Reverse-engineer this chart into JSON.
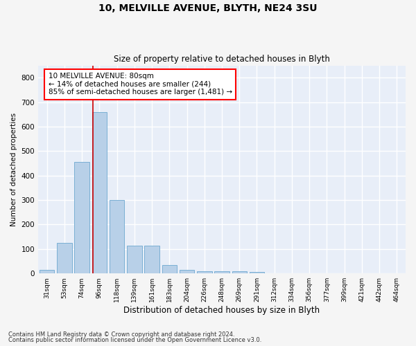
{
  "title1": "10, MELVILLE AVENUE, BLYTH, NE24 3SU",
  "title2": "Size of property relative to detached houses in Blyth",
  "xlabel": "Distribution of detached houses by size in Blyth",
  "ylabel": "Number of detached properties",
  "bin_labels": [
    "31sqm",
    "53sqm",
    "74sqm",
    "96sqm",
    "118sqm",
    "139sqm",
    "161sqm",
    "183sqm",
    "204sqm",
    "226sqm",
    "248sqm",
    "269sqm",
    "291sqm",
    "312sqm",
    "334sqm",
    "356sqm",
    "377sqm",
    "399sqm",
    "421sqm",
    "442sqm",
    "464sqm"
  ],
  "bar_heights": [
    15,
    125,
    455,
    660,
    300,
    115,
    115,
    35,
    15,
    10,
    10,
    10,
    5,
    0,
    0,
    0,
    0,
    0,
    0,
    0,
    0
  ],
  "bar_color": "#b8d0e8",
  "bar_edge_color": "#7aafd4",
  "annotation_box_text": "10 MELVILLE AVENUE: 80sqm\n← 14% of detached houses are smaller (244)\n85% of semi-detached houses are larger (1,481) →",
  "vline_x_index": 2.64,
  "vline_color": "#cc0000",
  "background_color": "#e8eef8",
  "grid_color": "#ffffff",
  "fig_background": "#f5f5f5",
  "ylim": [
    0,
    850
  ],
  "yticks": [
    0,
    100,
    200,
    300,
    400,
    500,
    600,
    700,
    800
  ],
  "footer1": "Contains HM Land Registry data © Crown copyright and database right 2024.",
  "footer2": "Contains public sector information licensed under the Open Government Licence v3.0."
}
